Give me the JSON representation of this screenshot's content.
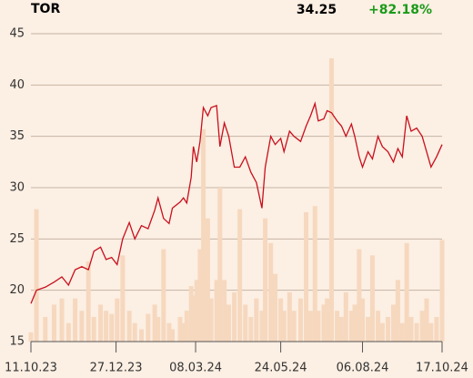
{
  "chart_data": {
    "type": "line",
    "symbol": "TOR",
    "last_price": 34.25,
    "change_label": "+82.18%",
    "x": [
      "2023-10-11",
      "2023-10-16",
      "2023-10-24",
      "2023-11-01",
      "2023-11-08",
      "2023-11-14",
      "2023-11-20",
      "2023-11-26",
      "2023-12-02",
      "2023-12-07",
      "2023-12-13",
      "2023-12-18",
      "2023-12-23",
      "2023-12-28",
      "2024-01-02",
      "2024-01-08",
      "2024-01-13",
      "2024-01-19",
      "2024-01-25",
      "2024-01-31",
      "2024-02-03",
      "2024-02-08",
      "2024-02-13",
      "2024-02-16",
      "2024-02-23",
      "2024-02-26",
      "2024-02-29",
      "2024-03-04",
      "2024-03-06",
      "2024-03-09",
      "2024-03-12",
      "2024-03-15",
      "2024-03-19",
      "2024-03-22",
      "2024-03-27",
      "2024-03-30",
      "2024-04-03",
      "2024-04-07",
      "2024-04-12",
      "2024-04-17",
      "2024-04-22",
      "2024-04-27",
      "2024-05-02",
      "2024-05-07",
      "2024-05-10",
      "2024-05-15",
      "2024-05-19",
      "2024-05-24",
      "2024-05-27",
      "2024-06-01",
      "2024-06-05",
      "2024-06-11",
      "2024-06-16",
      "2024-06-20",
      "2024-06-24",
      "2024-06-27",
      "2024-07-02",
      "2024-07-05",
      "2024-07-09",
      "2024-07-14",
      "2024-07-18",
      "2024-07-22",
      "2024-07-27",
      "2024-07-30",
      "2024-08-03",
      "2024-08-06",
      "2024-08-11",
      "2024-08-15",
      "2024-08-20",
      "2024-08-24",
      "2024-08-29",
      "2024-09-03",
      "2024-09-07",
      "2024-09-11",
      "2024-09-15",
      "2024-09-19",
      "2024-09-24",
      "2024-09-29",
      "2024-10-03",
      "2024-10-07",
      "2024-10-12",
      "2024-10-17"
    ],
    "series": [
      {
        "color": "#c8101e",
        "values": [
          18.7,
          20.0,
          20.3,
          20.8,
          21.3,
          20.5,
          22.0,
          22.3,
          22.0,
          23.8,
          24.2,
          23.0,
          23.2,
          22.5,
          25.0,
          26.6,
          25.0,
          26.3,
          26.0,
          27.8,
          29.0,
          27.0,
          26.5,
          28.0,
          28.6,
          29.0,
          28.5,
          31.0,
          34.0,
          32.5,
          34.5,
          37.8,
          37.0,
          37.8,
          38.0,
          34.0,
          36.3,
          35.0,
          32.0,
          32.0,
          33.0,
          31.5,
          30.5,
          28.0,
          32.0,
          35.0,
          34.2,
          34.8,
          33.5,
          35.5,
          35.0,
          34.5,
          36.0,
          37.0,
          38.2,
          36.5,
          36.7,
          37.5,
          37.3,
          36.5,
          36.0,
          35.0,
          36.2,
          35.0,
          33.0,
          32.0,
          33.5,
          32.8,
          35.0,
          34.0,
          33.5,
          32.5,
          33.8,
          33.0,
          37.0,
          35.5,
          35.8,
          35.0,
          33.5,
          32.0,
          33.0,
          34.2
        ]
      },
      {
        "color": "#f6d8bf",
        "axis": "y2",
        "values": [
          3,
          43,
          8,
          12,
          14,
          6,
          14,
          10,
          26,
          8,
          12,
          10,
          9,
          14,
          28,
          10,
          6,
          4,
          9,
          12,
          8,
          30,
          6,
          4,
          8,
          6,
          10,
          18,
          15,
          20,
          30,
          69,
          40,
          14,
          20,
          50,
          20,
          12,
          16,
          43,
          12,
          8,
          14,
          10,
          40,
          32,
          22,
          14,
          10,
          16,
          10,
          14,
          42,
          10,
          44,
          10,
          12,
          14,
          92,
          10,
          8,
          16,
          10,
          12,
          30,
          14,
          8,
          28,
          10,
          6,
          8,
          12,
          20,
          6,
          32,
          8,
          6,
          10,
          14,
          6,
          8,
          33
        ]
      }
    ],
    "xlim": [
      "2023-10-11",
      "2024-10-17"
    ],
    "xticks": [
      {
        "value": "2023-10-11",
        "label": "11.10.23"
      },
      {
        "value": "2023-12-27",
        "label": "27.12.23"
      },
      {
        "value": "2024-03-08",
        "label": "08.03.24"
      },
      {
        "value": "2024-05-24",
        "label": "24.05.24"
      },
      {
        "value": "2024-08-06",
        "label": "06.08.24"
      },
      {
        "value": "2024-10-17",
        "label": "17.10.24"
      }
    ],
    "ylim": [
      15,
      45
    ],
    "yticks": [
      15,
      20,
      25,
      30,
      35,
      40,
      45
    ],
    "y2lim": [
      0,
      100
    ],
    "grid": true
  }
}
